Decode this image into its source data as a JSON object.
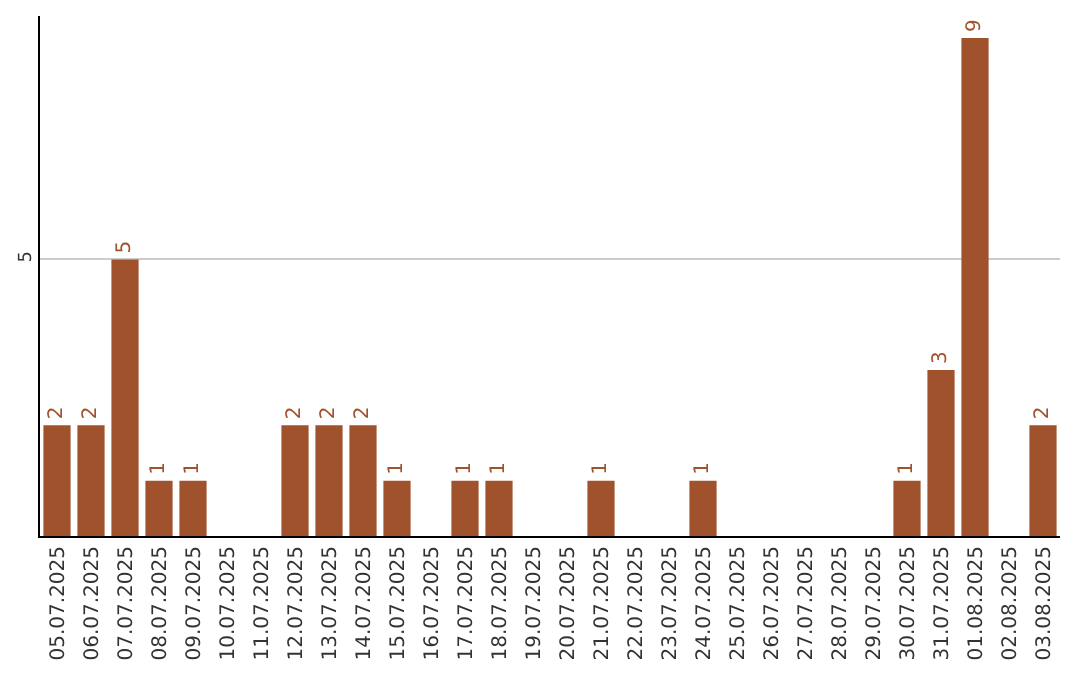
{
  "chart_data": {
    "type": "bar",
    "categories": [
      "05.07.2025",
      "06.07.2025",
      "07.07.2025",
      "08.07.2025",
      "09.07.2025",
      "10.07.2025",
      "11.07.2025",
      "12.07.2025",
      "13.07.2025",
      "14.07.2025",
      "15.07.2025",
      "16.07.2025",
      "17.07.2025",
      "18.07.2025",
      "19.07.2025",
      "20.07.2025",
      "21.07.2025",
      "22.07.2025",
      "23.07.2025",
      "24.07.2025",
      "25.07.2025",
      "26.07.2025",
      "27.07.2025",
      "28.07.2025",
      "29.07.2025",
      "30.07.2025",
      "31.07.2025",
      "01.08.2025",
      "02.08.2025",
      "03.08.2025"
    ],
    "values": [
      2,
      2,
      5,
      1,
      1,
      0,
      0,
      2,
      2,
      2,
      1,
      0,
      1,
      1,
      0,
      0,
      1,
      0,
      0,
      1,
      0,
      0,
      0,
      0,
      0,
      1,
      3,
      9,
      0,
      2
    ],
    "value_labels": [
      "2",
      "2",
      "5",
      "1",
      "1",
      null,
      null,
      "2",
      "2",
      "2",
      "1",
      null,
      "1",
      "1",
      null,
      null,
      "1",
      null,
      null,
      "1",
      null,
      null,
      null,
      null,
      null,
      "1",
      "3",
      "9",
      null,
      "2"
    ],
    "color": "#a0522d",
    "ylim": [
      0,
      9.4
    ],
    "yticks": [
      5
    ],
    "grid": "y",
    "legend": false
  }
}
